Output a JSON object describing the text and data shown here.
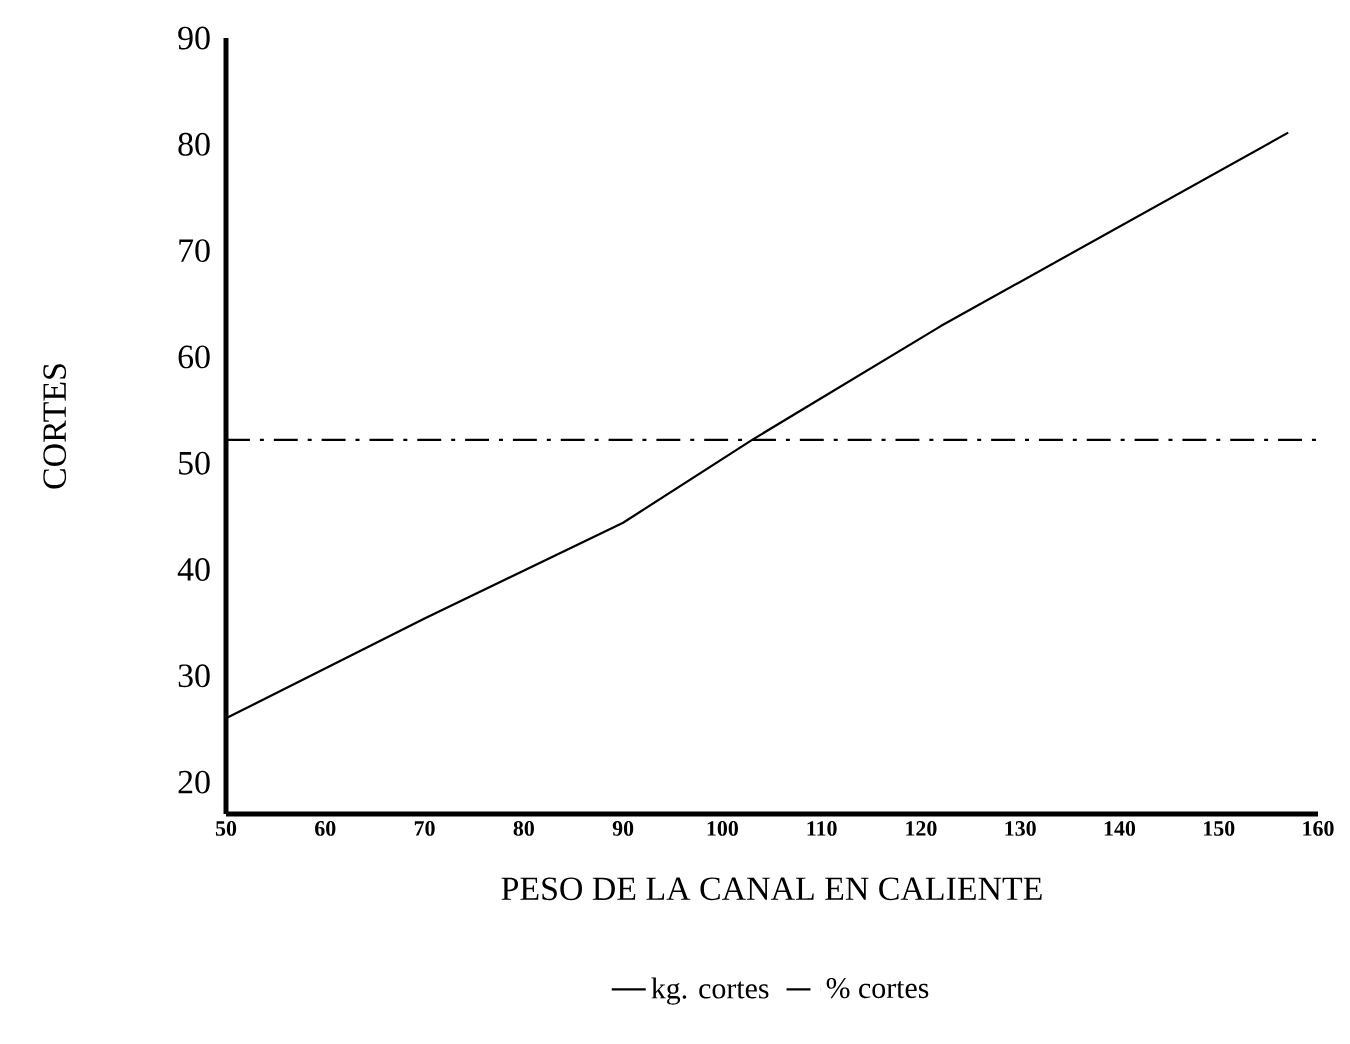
{
  "chart_data": {
    "type": "line",
    "xlabel": "PESO DE LA CANAL EN CALIENTE",
    "ylabel": "CORTES",
    "xlim": [
      50,
      160
    ],
    "ylim": [
      17,
      90
    ],
    "xticks": [
      50,
      60,
      70,
      80,
      90,
      100,
      110,
      120,
      130,
      140,
      150,
      160
    ],
    "yticks": [
      20,
      30,
      40,
      50,
      60,
      70,
      80,
      90
    ],
    "series": [
      {
        "name": "kg. cortes",
        "color": "#000000",
        "line_style": "solid",
        "x": [
          50,
          70,
          90,
          103,
          122,
          157
        ],
        "values": [
          26,
          35.4,
          44.4,
          52.2,
          62.9,
          81.1
        ]
      },
      {
        "name": "% cortes",
        "color": "#000000",
        "line_style": "dashdot",
        "x": [
          50,
          160
        ],
        "values": [
          52.2,
          52.2
        ]
      }
    ],
    "legend": "bottom",
    "grid": false,
    "marker": "none"
  }
}
